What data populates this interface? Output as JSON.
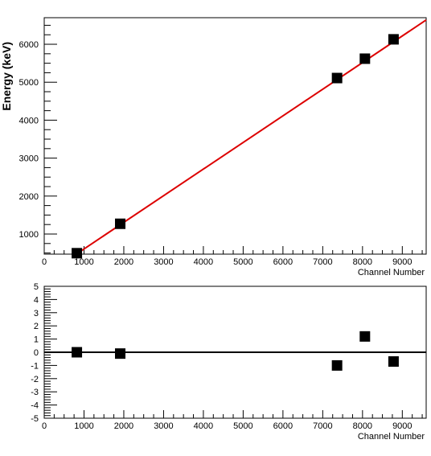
{
  "chart_data": [
    {
      "type": "scatter",
      "xlabel": "Channel Number",
      "ylabel": "Energy (keV)",
      "xlim": [
        0,
        9600
      ],
      "ylim": [
        470,
        6700
      ],
      "xticks": [
        0,
        1000,
        2000,
        3000,
        4000,
        5000,
        6000,
        7000,
        8000,
        9000
      ],
      "yticks": [
        1000,
        2000,
        3000,
        4000,
        5000,
        6000
      ],
      "series": [
        {
          "kind": "points",
          "marker": "square",
          "color": "#000000",
          "x": [
            820,
            1910,
            7360,
            8060,
            8780
          ],
          "y": [
            495,
            1270,
            5110,
            5620,
            6130
          ]
        },
        {
          "kind": "fit-line",
          "color": "#dd0000",
          "x": [
            820,
            9600
          ],
          "y": [
            480,
            6640
          ]
        }
      ]
    },
    {
      "type": "scatter",
      "xlabel": "Channel Number",
      "ylabel": "",
      "xlim": [
        0,
        9600
      ],
      "ylim": [
        -5,
        5
      ],
      "xticks": [
        0,
        1000,
        2000,
        3000,
        4000,
        5000,
        6000,
        7000,
        8000,
        9000
      ],
      "yticks": [
        -5,
        -4,
        -3,
        -2,
        -1,
        0,
        1,
        2,
        3,
        4,
        5
      ],
      "reference_line": 0,
      "series": [
        {
          "kind": "points",
          "marker": "square",
          "color": "#000000",
          "x": [
            820,
            1910,
            7360,
            8060,
            8780
          ],
          "y": [
            0.0,
            -0.1,
            -1.0,
            1.2,
            -0.7
          ]
        }
      ]
    }
  ]
}
